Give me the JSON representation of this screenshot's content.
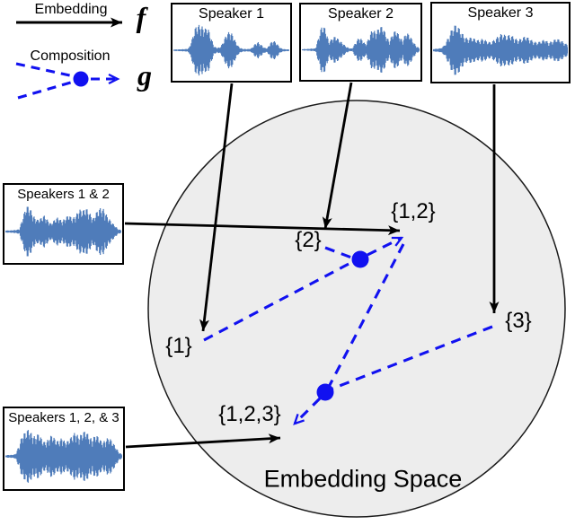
{
  "legend": {
    "embedding_label": "Embedding",
    "embedding_symbol": "f",
    "composition_label": "Composition",
    "composition_symbol": "g"
  },
  "boxes": {
    "speaker1": {
      "title": "Speaker 1",
      "waveform": [
        0.03,
        0.03,
        0.04,
        0.04,
        0.05,
        0.09,
        0.45,
        0.9,
        1.0,
        0.95,
        0.85,
        0.9,
        0.5,
        0.15,
        0.1,
        0.12,
        0.35,
        0.65,
        0.75,
        0.6,
        0.3,
        0.12,
        0.06,
        0.05,
        0.05,
        0.08,
        0.24,
        0.32,
        0.22,
        0.1,
        0.08,
        0.3,
        0.38,
        0.28,
        0.1,
        0.05,
        0.04,
        0.03
      ]
    },
    "speaker2": {
      "title": "Speaker 2",
      "waveform": [
        0.03,
        0.03,
        0.04,
        0.05,
        0.06,
        0.5,
        1.0,
        0.85,
        0.32,
        0.45,
        0.55,
        0.4,
        0.28,
        0.15,
        0.07,
        0.05,
        0.3,
        0.5,
        0.4,
        0.2,
        0.5,
        0.85,
        0.7,
        0.9,
        0.95,
        0.6,
        0.32,
        0.65,
        0.8,
        0.55,
        0.35,
        0.7,
        0.6,
        0.35,
        0.15,
        0.06
      ]
    },
    "speaker3": {
      "title": "Speaker 3",
      "waveform": [
        0.05,
        0.06,
        0.08,
        0.2,
        0.5,
        0.85,
        1.0,
        0.8,
        0.55,
        0.45,
        0.5,
        0.42,
        0.38,
        0.45,
        0.35,
        0.3,
        0.42,
        0.55,
        0.65,
        0.55,
        0.6,
        0.5,
        0.4,
        0.45,
        0.55,
        0.45,
        0.35,
        0.3,
        0.35,
        0.42,
        0.3,
        0.35,
        0.45,
        0.4,
        0.3,
        0.2
      ]
    },
    "speakers12": {
      "title": "Speakers 1 & 2",
      "waveform": [
        0.04,
        0.04,
        0.05,
        0.06,
        0.1,
        0.55,
        1.0,
        0.9,
        0.6,
        0.45,
        0.5,
        0.62,
        0.45,
        0.3,
        0.45,
        0.55,
        0.4,
        0.5,
        0.65,
        0.5,
        0.6,
        0.85,
        0.8,
        0.9,
        0.7,
        0.5,
        0.75,
        0.9,
        0.85,
        0.6,
        0.4,
        0.25,
        0.1,
        0.05
      ]
    },
    "speakers123": {
      "title": "Speakers 1, 2, & 3",
      "waveform": [
        0.04,
        0.05,
        0.06,
        0.08,
        0.35,
        0.75,
        0.9,
        1.0,
        0.8,
        0.7,
        0.85,
        0.6,
        0.5,
        0.65,
        0.8,
        0.6,
        0.55,
        0.7,
        0.5,
        0.6,
        0.75,
        0.9,
        0.7,
        0.85,
        0.95,
        0.75,
        0.6,
        0.8,
        0.7,
        0.5,
        0.6,
        0.7,
        0.55,
        0.35,
        0.15,
        0.06
      ]
    }
  },
  "embedding_space": {
    "title": "Embedding Space",
    "points": {
      "p1": "{1}",
      "p2": "{2}",
      "p12": "{1,2}",
      "p3": "{3}",
      "p123": "{1,2,3}"
    }
  },
  "colors": {
    "waveform_blue": "#4f7cba",
    "composition_blue": "#1111f0",
    "arrow_black": "#000000",
    "space_fill": "#ededed",
    "space_stroke": "#1a1a1a"
  }
}
